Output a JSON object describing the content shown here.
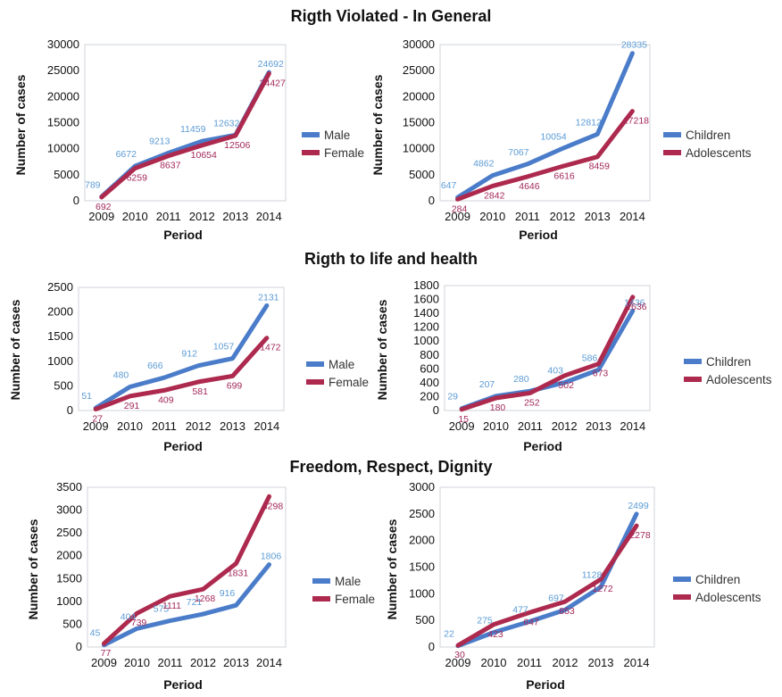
{
  "sections": [
    {
      "title": "Rigth Violated - In General"
    },
    {
      "title": "Rigth to life and health"
    },
    {
      "title": "Freedom, Respect, Dignity"
    }
  ],
  "colors": {
    "series_1": "#4a7cc9",
    "series_2": "#ad2a4e",
    "label_1": "#5b9bd5",
    "label_2": "#a3285a",
    "frame": "#cfd3da"
  },
  "chart_data": [
    {
      "type": "line",
      "section": 0,
      "x": [
        "2009",
        "2010",
        "2011",
        "2012",
        "2013",
        "2014"
      ],
      "xlabel": "Period",
      "ylabel": "Number of cases",
      "ylim": [
        0,
        30000
      ],
      "yticks": [
        0,
        5000,
        10000,
        15000,
        20000,
        25000,
        30000
      ],
      "legend": "right",
      "series": [
        {
          "name": "Male",
          "values": [
            789,
            6672,
            9213,
            11459,
            12632,
            24692
          ]
        },
        {
          "name": "Female",
          "values": [
            692,
            6259,
            8637,
            10654,
            12506,
            24427
          ]
        }
      ]
    },
    {
      "type": "line",
      "section": 0,
      "x": [
        "2009",
        "2010",
        "2011",
        "2012",
        "2013",
        "2014"
      ],
      "xlabel": "Period",
      "ylabel": "Number of cases",
      "ylim": [
        0,
        30000
      ],
      "yticks": [
        0,
        5000,
        10000,
        15000,
        20000,
        25000,
        30000
      ],
      "legend": "right",
      "series": [
        {
          "name": "Children",
          "values": [
            647,
            4862,
            7067,
            10054,
            12812,
            28335
          ]
        },
        {
          "name": "Adolescents",
          "values": [
            284,
            2842,
            4646,
            6616,
            8459,
            17218
          ]
        }
      ]
    },
    {
      "type": "line",
      "section": 1,
      "x": [
        "2009",
        "2010",
        "2011",
        "2012",
        "2013",
        "2014"
      ],
      "xlabel": "Period",
      "ylabel": "Number of cases",
      "ylim": [
        0,
        2500
      ],
      "yticks": [
        0,
        500,
        1000,
        1500,
        2000,
        2500
      ],
      "legend": "right",
      "series": [
        {
          "name": "Male",
          "values": [
            51,
            480,
            666,
            912,
            1057,
            2131
          ]
        },
        {
          "name": "Female",
          "values": [
            27,
            291,
            409,
            581,
            699,
            1472
          ]
        }
      ]
    },
    {
      "type": "line",
      "section": 1,
      "x": [
        "2009",
        "2010",
        "2011",
        "2012",
        "2013",
        "2014"
      ],
      "xlabel": "Period",
      "ylabel": "Number of cases",
      "ylim": [
        0,
        1800
      ],
      "yticks": [
        0,
        200,
        400,
        600,
        800,
        1000,
        1200,
        1400,
        1600,
        1800
      ],
      "legend": "right",
      "series": [
        {
          "name": "Children",
          "values": [
            29,
            207,
            280,
            403,
            586,
            1436
          ]
        },
        {
          "name": "Adolescents",
          "values": [
            15,
            180,
            252,
            502,
            673,
            1636
          ]
        }
      ]
    },
    {
      "type": "line",
      "section": 2,
      "x": [
        "2009",
        "2010",
        "2011",
        "2012",
        "2013",
        "2014"
      ],
      "xlabel": "Period",
      "ylabel": "Number of cases",
      "ylim": [
        0,
        3500
      ],
      "yticks": [
        0,
        500,
        1000,
        1500,
        2000,
        2500,
        3000,
        3500
      ],
      "legend": "right",
      "series": [
        {
          "name": "Male",
          "values": [
            45,
            404,
            575,
            721,
            916,
            1806
          ]
        },
        {
          "name": "Female",
          "values": [
            77,
            739,
            1111,
            1268,
            1831,
            3298
          ]
        }
      ]
    },
    {
      "type": "line",
      "section": 2,
      "x": [
        "2009",
        "2010",
        "2011",
        "2012",
        "2013",
        "2014"
      ],
      "xlabel": "Period",
      "ylabel": "Number of cases",
      "ylim": [
        0,
        3000
      ],
      "yticks": [
        0,
        500,
        1000,
        1500,
        2000,
        2500,
        3000
      ],
      "legend": "right",
      "series": [
        {
          "name": "Children",
          "values": [
            22,
            275,
            477,
            697,
            1128,
            2499
          ]
        },
        {
          "name": "Adolescents",
          "values": [
            30,
            423,
            647,
            853,
            1272,
            2278
          ]
        }
      ]
    }
  ]
}
